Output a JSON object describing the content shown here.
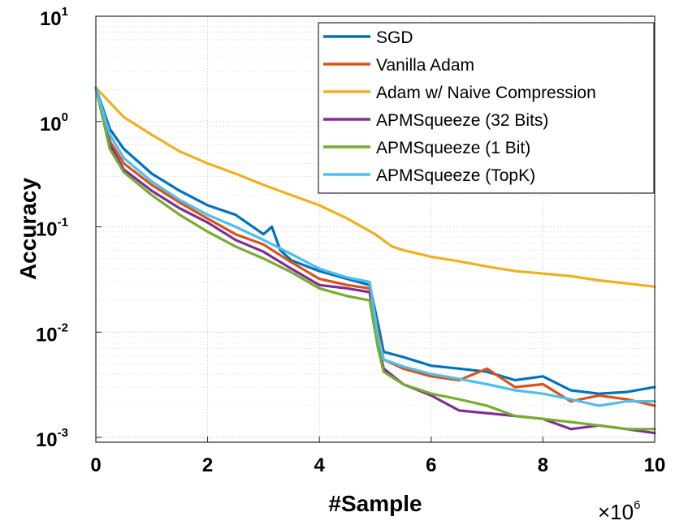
{
  "chart_data": {
    "type": "line",
    "title": "",
    "xlabel": "#Sample",
    "ylabel": "Accuracy",
    "x_multiplier": "×10",
    "x_multiplier_exp": "6",
    "xlim": [
      0,
      10
    ],
    "ylim": [
      0.0009,
      10
    ],
    "yscale": "log",
    "grid": true,
    "legend_position": "top-right",
    "x_ticks": [
      "0",
      "2",
      "4",
      "6",
      "8",
      "10"
    ],
    "y_ticks": [
      {
        "value": 10,
        "base": "10",
        "exp": "1"
      },
      {
        "value": 1,
        "base": "10",
        "exp": "0"
      },
      {
        "value": 0.1,
        "base": "10",
        "exp": "-1"
      },
      {
        "value": 0.01,
        "base": "10",
        "exp": "-2"
      },
      {
        "value": 0.001,
        "base": "10",
        "exp": "-3"
      }
    ],
    "series": [
      {
        "name": "SGD",
        "color": "#0072BD",
        "x": [
          0,
          0.25,
          0.5,
          1.0,
          1.5,
          2.0,
          2.5,
          3.0,
          3.15,
          3.3,
          3.5,
          4.0,
          4.5,
          4.9,
          5.05,
          5.15,
          5.5,
          6.0,
          6.5,
          7.0,
          7.5,
          8.0,
          8.5,
          9.0,
          9.5,
          10.0
        ],
        "y": [
          2.1,
          0.85,
          0.55,
          0.32,
          0.22,
          0.16,
          0.13,
          0.085,
          0.1,
          0.06,
          0.048,
          0.038,
          0.032,
          0.028,
          0.012,
          0.0065,
          0.0058,
          0.0048,
          0.0045,
          0.0042,
          0.0035,
          0.0038,
          0.0028,
          0.0026,
          0.0027,
          0.003
        ]
      },
      {
        "name": "Vanilla Adam",
        "color": "#D95319",
        "x": [
          0,
          0.25,
          0.5,
          1.0,
          1.5,
          2.0,
          2.5,
          3.0,
          3.5,
          4.0,
          4.5,
          4.9,
          5.05,
          5.15,
          5.5,
          6.0,
          6.5,
          7.0,
          7.5,
          8.0,
          8.5,
          9.0,
          9.5,
          10.0
        ],
        "y": [
          2.1,
          0.65,
          0.4,
          0.25,
          0.17,
          0.12,
          0.085,
          0.068,
          0.046,
          0.032,
          0.028,
          0.026,
          0.01,
          0.0055,
          0.0045,
          0.0038,
          0.0035,
          0.0045,
          0.003,
          0.0032,
          0.0022,
          0.0025,
          0.0023,
          0.002
        ]
      },
      {
        "name": "Adam w/ Naive Compression",
        "color": "#EDB120",
        "x": [
          0,
          0.5,
          1.0,
          1.5,
          2.0,
          2.5,
          3.0,
          3.5,
          4.0,
          4.5,
          5.0,
          5.3,
          5.5,
          6.0,
          6.5,
          7.0,
          7.5,
          8.0,
          8.5,
          9.0,
          9.5,
          10.0
        ],
        "y": [
          2.1,
          1.1,
          0.75,
          0.52,
          0.4,
          0.32,
          0.25,
          0.2,
          0.16,
          0.12,
          0.085,
          0.065,
          0.06,
          0.052,
          0.047,
          0.042,
          0.038,
          0.036,
          0.034,
          0.031,
          0.029,
          0.027
        ]
      },
      {
        "name": "APMSqueeze (32 Bits)",
        "color": "#7E2F8E",
        "x": [
          0,
          0.25,
          0.5,
          1.0,
          1.5,
          2.0,
          2.5,
          3.0,
          3.5,
          4.0,
          4.5,
          4.9,
          5.05,
          5.15,
          5.5,
          6.0,
          6.5,
          7.0,
          7.5,
          8.0,
          8.5,
          9.0,
          9.5,
          10.0
        ],
        "y": [
          2.1,
          0.6,
          0.35,
          0.22,
          0.15,
          0.11,
          0.075,
          0.058,
          0.04,
          0.028,
          0.026,
          0.024,
          0.008,
          0.0045,
          0.0032,
          0.0025,
          0.0018,
          0.0017,
          0.0016,
          0.0015,
          0.0012,
          0.0013,
          0.0012,
          0.0011
        ]
      },
      {
        "name": "APMSqueeze (1 Bit)",
        "color": "#77AC30",
        "x": [
          0,
          0.25,
          0.5,
          1.0,
          1.5,
          2.0,
          2.5,
          3.0,
          3.5,
          4.0,
          4.5,
          4.9,
          5.05,
          5.15,
          5.5,
          6.0,
          6.5,
          7.0,
          7.5,
          8.0,
          8.5,
          9.0,
          9.5,
          10.0
        ],
        "y": [
          2.1,
          0.55,
          0.33,
          0.2,
          0.13,
          0.09,
          0.065,
          0.05,
          0.037,
          0.026,
          0.022,
          0.02,
          0.007,
          0.0042,
          0.0032,
          0.0026,
          0.0023,
          0.002,
          0.0016,
          0.0015,
          0.0014,
          0.0013,
          0.0012,
          0.0012
        ]
      },
      {
        "name": "APMSqueeze (TopK)",
        "color": "#4DBEEE",
        "x": [
          0,
          0.25,
          0.5,
          1.0,
          1.5,
          2.0,
          2.5,
          3.0,
          3.5,
          4.0,
          4.5,
          4.9,
          5.05,
          5.15,
          5.5,
          6.0,
          6.5,
          7.0,
          7.5,
          8.0,
          8.5,
          9.0,
          9.5,
          10.0
        ],
        "y": [
          2.1,
          0.75,
          0.45,
          0.27,
          0.18,
          0.13,
          0.1,
          0.075,
          0.055,
          0.04,
          0.033,
          0.03,
          0.009,
          0.0055,
          0.0047,
          0.004,
          0.0036,
          0.0032,
          0.0028,
          0.0026,
          0.0023,
          0.002,
          0.0022,
          0.0022
        ]
      }
    ]
  }
}
